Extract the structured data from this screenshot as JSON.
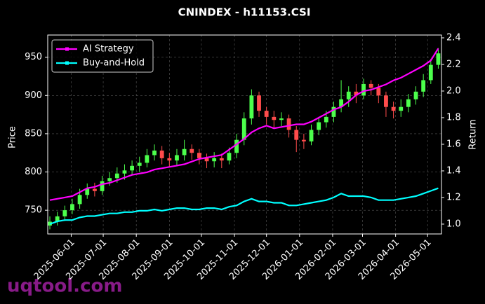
{
  "chart_data": {
    "type": "candlestick",
    "title": "CNINDEX - h11153.CSI",
    "y_label": "Price",
    "y2_label": "Return",
    "watermark": "uqtool.com",
    "up_color": "#4cff4c",
    "down_color": "#ff4c4c",
    "grid": true,
    "legend": "upper left",
    "xlim": [
      "2025-05-10",
      "2026-05-14"
    ],
    "xticks": [
      "2025-06-01",
      "2025-07-01",
      "2025-08-01",
      "2025-09-01",
      "2025-10-01",
      "2025-11-01",
      "2025-12-01",
      "2026-01-01",
      "2026-02-01",
      "2026-03-01",
      "2026-04-01",
      "2026-05-01"
    ],
    "ylim": [
      719,
      979
    ],
    "yticks": [
      750,
      800,
      850,
      900,
      950
    ],
    "y2lim": [
      0.926,
      2.421
    ],
    "y2ticks": [
      {
        "value": 1,
        "label": "1.0"
      },
      1.2,
      1.4,
      1.6,
      1.8,
      {
        "value": 2,
        "label": "2.0"
      },
      2.2,
      2.4
    ],
    "x": [
      "2025-05-12",
      "2025-05-19",
      "2025-05-26",
      "2025-06-02",
      "2025-06-09",
      "2025-06-16",
      "2025-06-23",
      "2025-06-30",
      "2025-07-07",
      "2025-07-14",
      "2025-07-21",
      "2025-07-28",
      "2025-08-04",
      "2025-08-11",
      "2025-08-18",
      "2025-08-25",
      "2025-09-01",
      "2025-09-08",
      "2025-09-15",
      "2025-09-22",
      "2025-09-29",
      "2025-10-06",
      "2025-10-13",
      "2025-10-20",
      "2025-10-27",
      "2025-11-03",
      "2025-11-10",
      "2025-11-17",
      "2025-11-24",
      "2025-12-01",
      "2025-12-08",
      "2025-12-15",
      "2025-12-22",
      "2025-12-29",
      "2026-01-05",
      "2026-01-12",
      "2026-01-19",
      "2026-01-26",
      "2026-02-02",
      "2026-02-09",
      "2026-02-16",
      "2026-02-23",
      "2026-03-02",
      "2026-03-09",
      "2026-03-16",
      "2026-03-23",
      "2026-03-30",
      "2026-04-06",
      "2026-04-13",
      "2026-04-20",
      "2026-04-27",
      "2026-05-04",
      "2026-05-11"
    ],
    "open": [
      730,
      735,
      742,
      750,
      758,
      770,
      778,
      775,
      788,
      792,
      798,
      802,
      808,
      812,
      822,
      828,
      818,
      815,
      822,
      830,
      825,
      818,
      814,
      818,
      815,
      825,
      842,
      870,
      900,
      880,
      872,
      868,
      870,
      855,
      842,
      840,
      855,
      865,
      872,
      885,
      895,
      905,
      900,
      915,
      910,
      900,
      885,
      880,
      885,
      895,
      905,
      920,
      940
    ],
    "high": [
      742,
      748,
      756,
      765,
      778,
      785,
      786,
      795,
      800,
      806,
      810,
      815,
      820,
      830,
      836,
      834,
      825,
      830,
      842,
      836,
      830,
      824,
      826,
      824,
      832,
      850,
      878,
      908,
      905,
      885,
      880,
      878,
      875,
      860,
      850,
      862,
      872,
      880,
      892,
      920,
      912,
      915,
      922,
      920,
      915,
      905,
      892,
      895,
      902,
      912,
      928,
      948,
      962
    ],
    "low": [
      725,
      730,
      736,
      745,
      752,
      765,
      768,
      770,
      782,
      786,
      790,
      796,
      800,
      806,
      815,
      810,
      806,
      808,
      815,
      816,
      810,
      805,
      806,
      805,
      810,
      818,
      835,
      862,
      872,
      862,
      858,
      860,
      845,
      826,
      830,
      835,
      848,
      858,
      865,
      878,
      885,
      890,
      895,
      900,
      890,
      872,
      870,
      872,
      878,
      888,
      898,
      915,
      935
    ],
    "close": [
      735,
      742,
      750,
      758,
      770,
      778,
      775,
      788,
      792,
      798,
      802,
      808,
      812,
      822,
      828,
      818,
      815,
      822,
      830,
      825,
      818,
      814,
      818,
      815,
      825,
      842,
      870,
      900,
      880,
      872,
      868,
      870,
      855,
      842,
      840,
      855,
      865,
      872,
      885,
      895,
      905,
      900,
      915,
      910,
      900,
      885,
      880,
      885,
      895,
      905,
      920,
      940,
      955
    ],
    "series": [
      {
        "name": "AI Strategy",
        "color": "#ff00ff",
        "axis": "y2",
        "values": [
          1.18,
          1.19,
          1.2,
          1.21,
          1.24,
          1.27,
          1.28,
          1.3,
          1.31,
          1.33,
          1.35,
          1.37,
          1.38,
          1.39,
          1.41,
          1.42,
          1.43,
          1.44,
          1.45,
          1.47,
          1.49,
          1.5,
          1.51,
          1.52,
          1.56,
          1.6,
          1.64,
          1.69,
          1.72,
          1.74,
          1.72,
          1.73,
          1.74,
          1.75,
          1.75,
          1.77,
          1.8,
          1.83,
          1.86,
          1.88,
          1.92,
          1.97,
          2.0,
          2.01,
          2.03,
          2.05,
          2.08,
          2.1,
          2.13,
          2.16,
          2.19,
          2.23,
          2.32
        ]
      },
      {
        "name": "Buy-and-Hold",
        "color": "#00ffff",
        "axis": "y2",
        "values": [
          1.0,
          1.02,
          1.03,
          1.03,
          1.05,
          1.06,
          1.06,
          1.07,
          1.08,
          1.08,
          1.09,
          1.09,
          1.1,
          1.1,
          1.11,
          1.1,
          1.11,
          1.12,
          1.12,
          1.11,
          1.11,
          1.12,
          1.12,
          1.11,
          1.13,
          1.14,
          1.17,
          1.19,
          1.17,
          1.17,
          1.16,
          1.16,
          1.14,
          1.14,
          1.15,
          1.16,
          1.17,
          1.18,
          1.2,
          1.23,
          1.21,
          1.21,
          1.21,
          1.2,
          1.18,
          1.18,
          1.18,
          1.19,
          1.2,
          1.21,
          1.23,
          1.25,
          1.27
        ]
      }
    ]
  }
}
